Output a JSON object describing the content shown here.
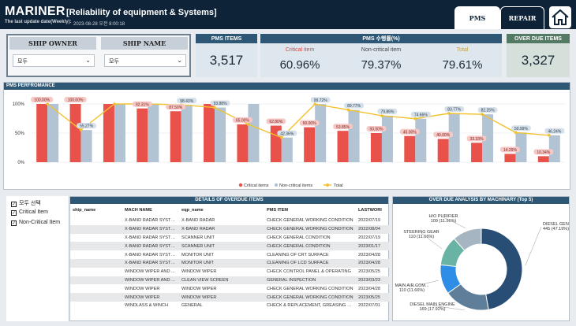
{
  "header": {
    "title": "MARINER",
    "subtitle": "[Reliability of equipment & Systems]",
    "update_label": "The last update date(Weekly):",
    "update_value": "2023-08-28 오전 8:00:18",
    "tabs": [
      {
        "label": "PMS"
      },
      {
        "label": "REPAIR"
      }
    ],
    "home_icon": "home-icon"
  },
  "filters": {
    "ship_owner": {
      "header": "SHIP OWNER",
      "value": "모두"
    },
    "ship_name": {
      "header": "SHIP NAME",
      "value": "모두"
    }
  },
  "kpis": {
    "pms_items": {
      "title": "PMS ITEMS",
      "value": "3,517"
    },
    "rate": {
      "title": "PMS 수행률(%)",
      "critical": {
        "label": "Critical item",
        "value": "60.96%"
      },
      "noncritical": {
        "label": "Non-critical item",
        "value": "79.37%"
      },
      "total": {
        "label": "Total",
        "value": "79.61%"
      }
    },
    "overdue": {
      "title": "OVER DUE ITEMS",
      "value": "3,327"
    }
  },
  "colors": {
    "critical": "#e9524a",
    "noncritical": "#b2c4d3",
    "total": "#f2c12e",
    "header": "#2d5774"
  },
  "chart_data": [
    {
      "type": "bar",
      "title": "PMS PERFROMANCE",
      "y_ticks": [
        "100%",
        "50%",
        "0%"
      ],
      "ylim": [
        0,
        100
      ],
      "series": [
        {
          "name": "Critical items",
          "values": [
            100,
            100,
            100,
            92.31,
            87.5,
            100,
            65,
            62.8,
            60,
            53.85,
            50,
            45,
            40,
            33.33,
            14.29,
            10.34
          ]
        },
        {
          "name": "Non-critical items",
          "values": [
            100,
            55.27,
            100,
            100,
            98.43,
            93.88,
            100,
            42.36,
            99.72,
            89.77,
            79.86,
            74.66,
            83.77,
            82.25,
            50.99,
            46.24
          ]
        },
        {
          "name": "Total",
          "values": [
            100,
            55.27,
            100,
            100,
            98.43,
            93.88,
            65,
            42.36,
            99.72,
            89.77,
            79.86,
            74.66,
            83.77,
            82.25,
            50.99,
            46.24
          ]
        }
      ],
      "critical_labels": [
        "100.00%",
        "100.00%",
        "",
        "92.31%",
        "87.50%",
        "",
        "65.00%",
        "62.80%",
        "60.00%",
        "53.85%",
        "50.00%",
        "45.00%",
        "40.00%",
        "33.33%",
        "14.29%",
        "10.34%"
      ],
      "noncritical_labels": [
        "",
        "55.27%",
        "",
        "",
        "98.43%",
        "93.88%",
        "",
        "42.36%",
        "99.72%",
        "89.77%",
        "79.86%",
        "74.66%",
        "83.77%",
        "82.25%",
        "50.99%",
        "46.24%"
      ],
      "legend": [
        "Critical items",
        "Non-critical items",
        "Total"
      ]
    },
    {
      "type": "pie",
      "title": "OVER DUE ANALYSIS BY MACHINARY (Top 5)",
      "slices": [
        {
          "name": "DIESEL GENERATOR...",
          "value": 445,
          "label": "445 (47.19%)"
        },
        {
          "name": "DIESEL MAIN ENGINE",
          "value": 169,
          "label": "169 (17.92%)"
        },
        {
          "name": "MAIN AIR COM...",
          "value": 110,
          "label": "110 (11.66%)"
        },
        {
          "name": "STEERING GEAR",
          "value": 110,
          "label": "110 (11.66%)"
        },
        {
          "name": "H/O PURIFIER",
          "value": 109,
          "label": "109 (11.56%)"
        }
      ],
      "colors": [
        "#284e75",
        "#5f7e99",
        "#2e8de6",
        "#69b3a4",
        "#a5b6c2"
      ]
    }
  ],
  "checklist": [
    {
      "label": "모두 선택",
      "checked": true
    },
    {
      "label": "Critical Item",
      "checked": true
    },
    {
      "label": "Non-Critical Item",
      "checked": true
    }
  ],
  "overdue_table": {
    "title": "DETAILS OF OVERDUE ITEMS",
    "columns": [
      "ship_name",
      "MACH NAME",
      "eqp_name",
      "PMS ITEM",
      "LASTWORI"
    ],
    "rows": [
      [
        "",
        "X-BAND RADAR SYSTEM",
        "X-BAND RADAR",
        "CHECK GENERAL WORKING CONDITION",
        "2022/07/19"
      ],
      [
        "",
        "X-BAND RADAR SYSTEM",
        "X-BAND RADAR",
        "CHECK GENERAL WORKING CONDITION",
        "2022/08/04"
      ],
      [
        "",
        "X-BAND RADAR SYSTEM",
        "SCANNER UNIT",
        "CHECK GENERAL CONDITION",
        "2022/07/19"
      ],
      [
        "",
        "X-BAND RADAR SYSTEM",
        "SCANNER UNIT",
        "CHECK GENERAL CONDITION",
        "2023/01/17"
      ],
      [
        "",
        "X-BAND RADAR SYSTEM",
        "MONITOR UNIT",
        "CLEANING OF CRT SURFACE",
        "2023/04/28"
      ],
      [
        "",
        "X-BAND RADAR SYSTEM",
        "MONITOR UNIT",
        "CLEANING OF LCD SURFACE",
        "2023/04/28"
      ],
      [
        "",
        "WINDOW WIPER AND ...",
        "WINDOW WIPER",
        "CHECK CONTROL PANEL & OPERATING",
        "2023/05/25"
      ],
      [
        "",
        "WINDOW WIPER AND ...",
        "CLEAN VIEW SCREEN",
        "GENERAL INSPECTION",
        "2023/03/23"
      ],
      [
        "",
        "WINDOW WIPER",
        "WINDOW WIPER",
        "CHECK GENERAL WORKING CONDITION",
        "2023/04/28"
      ],
      [
        "",
        "WINDOW WIPER",
        "WINDOW WIPER",
        "CHECK GENERAL WORKING CONDITION",
        "2023/05/25"
      ],
      [
        "",
        "WINDLASS & WINCH",
        "GENERAL",
        "CHECK & REPLACEMENT, GREASING OF...",
        "2022/07/01"
      ]
    ]
  }
}
